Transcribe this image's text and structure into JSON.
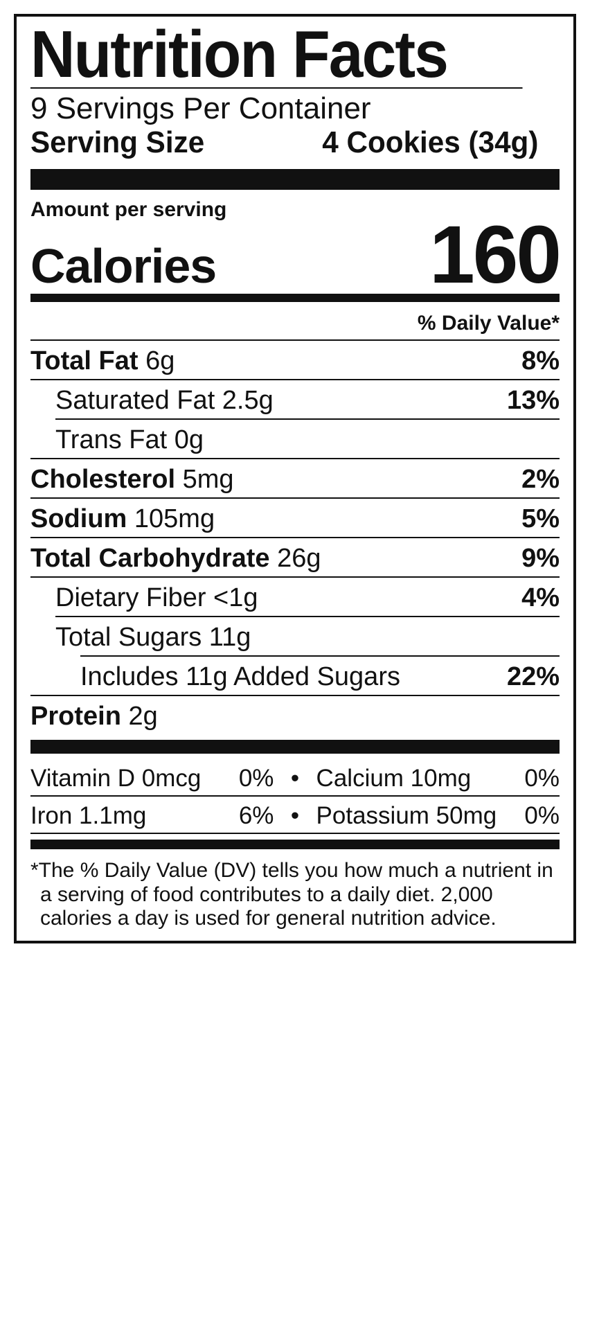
{
  "title": "Nutrition Facts",
  "servings_per": "9 Servings Per Container",
  "serving_size_label": "Serving Size",
  "serving_size_value": "4 Cookies (34g)",
  "amount_per_serving": "Amount per serving",
  "calories_label": "Calories",
  "calories_value": "160",
  "dv_header": "% Daily Value*",
  "rows": {
    "total_fat_name": "Total Fat",
    "total_fat_amt": "6g",
    "total_fat_pct": "8%",
    "sat_fat_name": "Saturated Fat 2.5g",
    "sat_fat_pct": "13%",
    "trans_fat_name": "Trans Fat 0g",
    "chol_name": "Cholesterol",
    "chol_amt": "5mg",
    "chol_pct": "2%",
    "sodium_name": "Sodium",
    "sodium_amt": "105mg",
    "sodium_pct": "5%",
    "carb_name": "Total Carbohydrate",
    "carb_amt": "26g",
    "carb_pct": "9%",
    "fiber_name": "Dietary Fiber <1g",
    "fiber_pct": "4%",
    "sugars_name": "Total Sugars 11g",
    "added_sugars_name": "Includes 11g Added Sugars",
    "added_sugars_pct": "22%",
    "protein_name": "Protein",
    "protein_amt": "2g"
  },
  "vitamins": {
    "vd": "Vitamin D 0mcg",
    "vd_pct": "0%",
    "ca": "Calcium 10mg",
    "ca_pct": "0%",
    "fe": "Iron 1.1mg",
    "fe_pct": "6%",
    "k": "Potassium 50mg",
    "k_pct": "0%",
    "bullet": "•"
  },
  "footnote": "*The % Daily Value (DV) tells you how much a nutrient in a serving of food contributes to a daily diet. 2,000 calories a day is used for general nutrition advice."
}
